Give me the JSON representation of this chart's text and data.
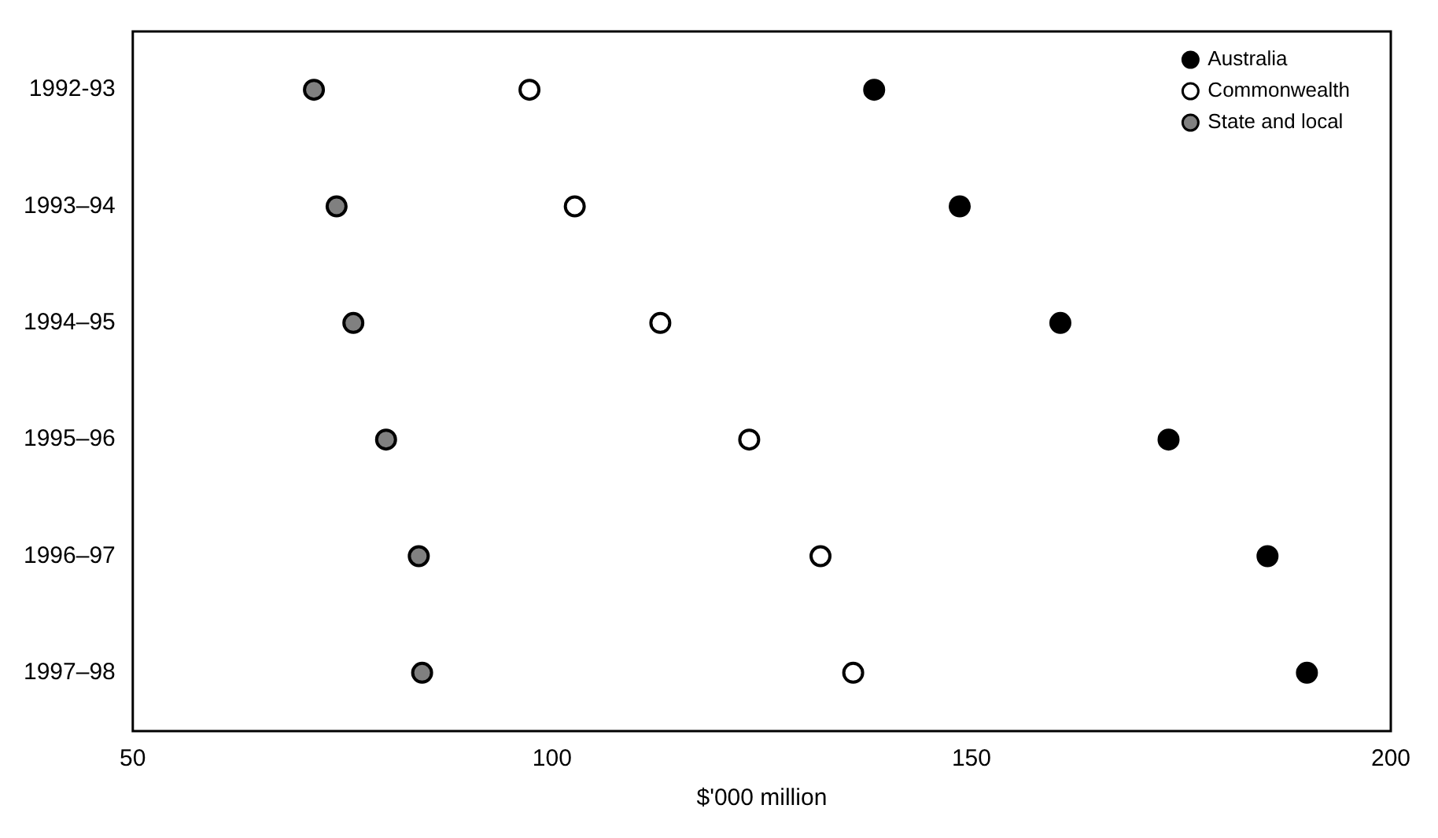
{
  "chart_data": {
    "type": "scatter",
    "orientation": "horizontal",
    "xlabel": "$'000 million",
    "categories": [
      "1992-93",
      "1993–94",
      "1994–95",
      "1995–96",
      "1996–97",
      "1997–98"
    ],
    "series": [
      {
        "name": "Australia",
        "color": "#000000",
        "values": [
          138.4,
          148.6,
          160.6,
          173.5,
          185.3,
          190
        ]
      },
      {
        "name": "Commonwealth",
        "color": "#ffffff",
        "values": [
          97.3,
          102.7,
          112.9,
          123.5,
          132,
          135.9
        ]
      },
      {
        "name": "State and local",
        "color": "#808080",
        "values": [
          71.6,
          74.3,
          76.3,
          80.2,
          84.1,
          84.5
        ]
      }
    ],
    "xlim": [
      50,
      200
    ],
    "xticks": [
      50,
      100,
      150,
      200
    ],
    "grid": false,
    "legend": "top right",
    "marker": "circle"
  }
}
